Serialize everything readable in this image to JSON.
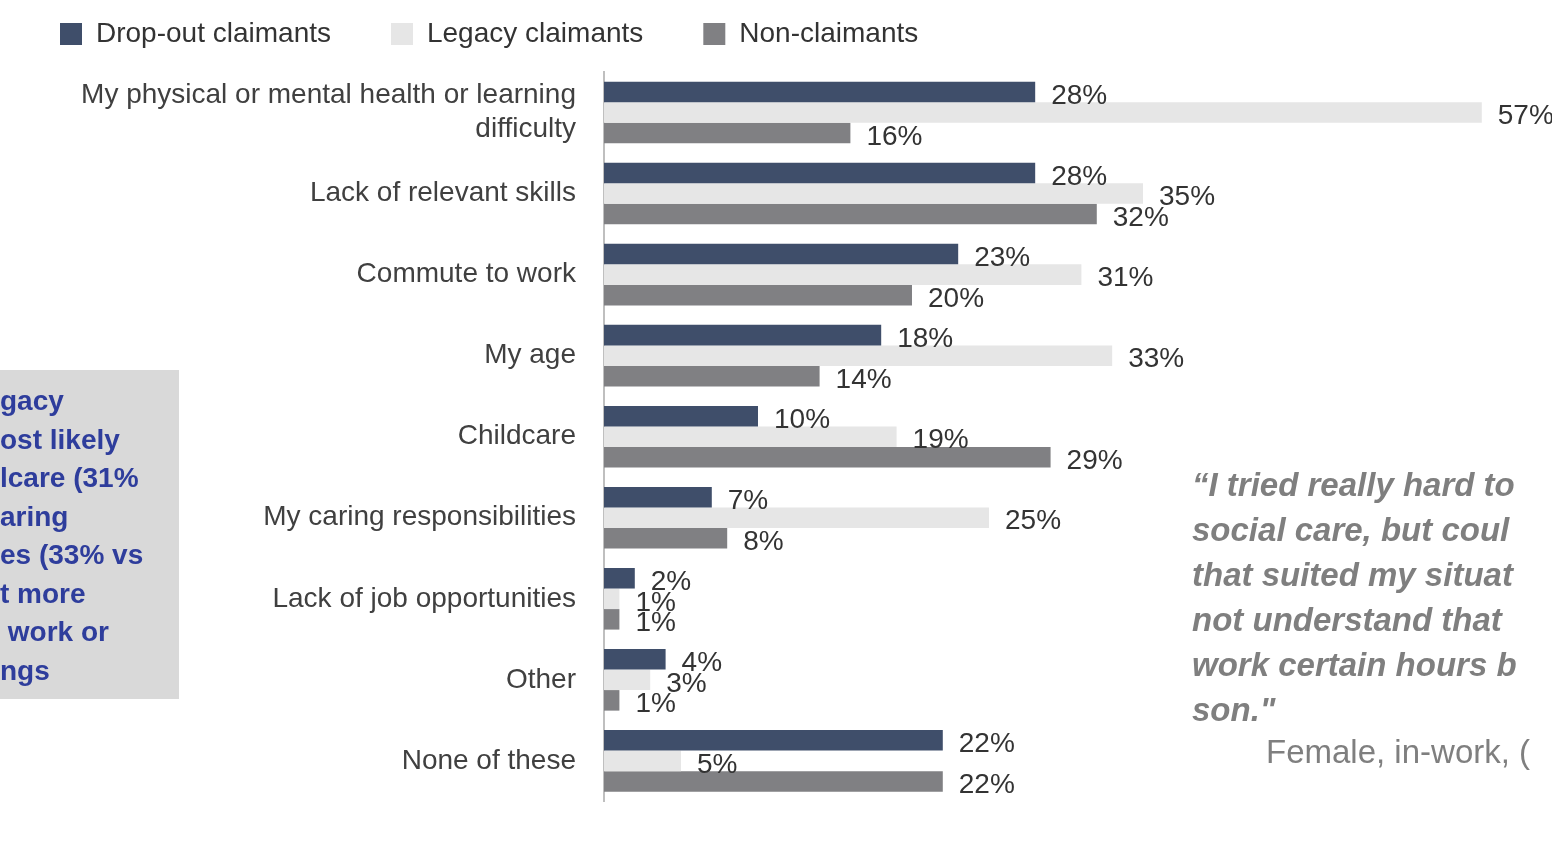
{
  "chart_data": {
    "type": "bar",
    "orientation": "horizontal",
    "legend": "top",
    "grid": false,
    "categories": [
      "My physical or mental health or learning difficulty",
      "Lack of relevant skills",
      "Commute to work",
      "My age",
      "Childcare",
      "My caring responsibilities",
      "Lack of job opportunities",
      "Other",
      "None of these"
    ],
    "series": [
      {
        "name": "Drop-out claimants",
        "color": "#3f4e6a",
        "values": [
          28,
          28,
          23,
          18,
          10,
          7,
          2,
          4,
          22
        ],
        "value_labels": [
          "28%",
          "28%",
          "23%",
          "18%",
          "10%",
          "7%",
          "2%",
          "4%",
          "22%"
        ]
      },
      {
        "name": "Legacy claimants",
        "color": "#e6e6e6",
        "values": [
          57,
          35,
          31,
          33,
          19,
          25,
          1,
          3,
          5
        ],
        "value_labels": [
          "57%",
          "35%",
          "31%",
          "33%",
          "19%",
          "25%",
          "1%",
          "3%",
          "5%"
        ]
      },
      {
        "name": "Non-claimants",
        "color": "#808083",
        "values": [
          16,
          32,
          20,
          14,
          29,
          8,
          1,
          1,
          22
        ],
        "value_labels": [
          "16%",
          "32%",
          "20%",
          "14%",
          "29%",
          "8%",
          "1%",
          "1%",
          "22%"
        ]
      }
    ],
    "annotations": [
      "gacy\nost likely\nlcare (31%\naring\nes (33% vs\nt more\n work or\nngs",
      "“I tried really hard to\nsocial care, but coul\nthat suited my situat\nnot understand that\nwork certain hours b\nson.\"",
      "Female, in-work, ("
    ]
  }
}
